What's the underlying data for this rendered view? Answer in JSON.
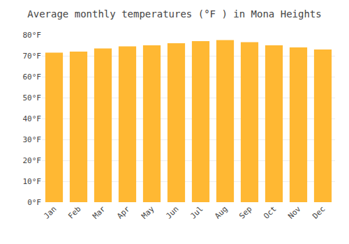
{
  "chart_data": {
    "type": "bar",
    "title": "Average monthly temperatures (°F ) in Mona Heights",
    "categories": [
      "Jan",
      "Feb",
      "Mar",
      "Apr",
      "May",
      "Jun",
      "Jul",
      "Aug",
      "Sep",
      "Oct",
      "Nov",
      "Dec"
    ],
    "values": [
      71.5,
      72.0,
      73.5,
      74.5,
      75.0,
      76.0,
      77.0,
      77.5,
      76.5,
      75.0,
      74.0,
      73.0
    ],
    "color": "#FFB833",
    "ylim": [
      0,
      80
    ],
    "yticks": [
      {
        "value": 0,
        "label": "0°F"
      },
      {
        "value": 10,
        "label": "10°F"
      },
      {
        "value": 20,
        "label": "20°F"
      },
      {
        "value": 30,
        "label": "30°F"
      },
      {
        "value": 40,
        "label": "40°F"
      },
      {
        "value": 50,
        "label": "50°F"
      },
      {
        "value": 60,
        "label": "60°F"
      },
      {
        "value": 70,
        "label": "70°F"
      },
      {
        "value": 80,
        "label": "80°F"
      }
    ],
    "grid": true
  }
}
